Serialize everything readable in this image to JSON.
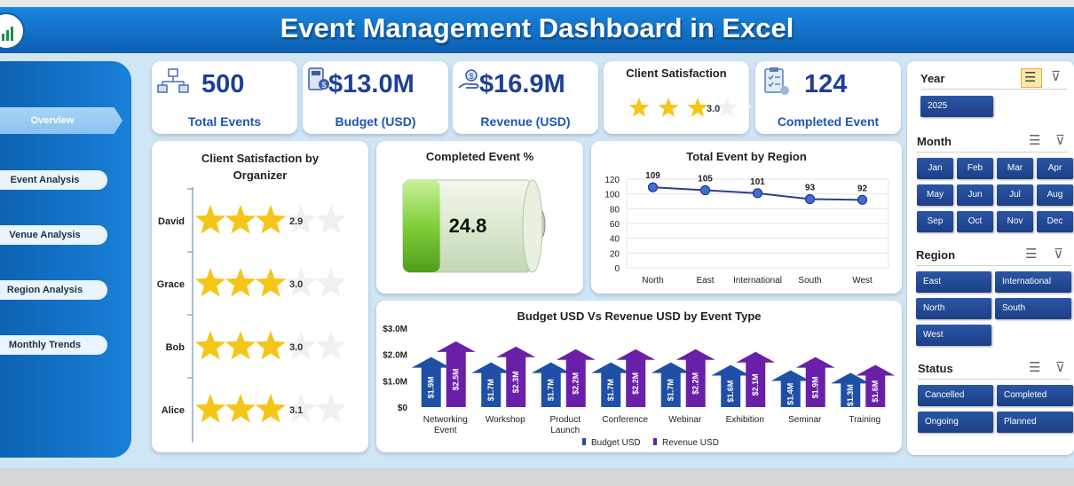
{
  "header": {
    "title": "Event Management Dashboard in Excel"
  },
  "nav": {
    "items": [
      {
        "label": "Overview",
        "active": true
      },
      {
        "label": "Event  Analysis",
        "active": false
      },
      {
        "label": "Venue Analysis",
        "active": false
      },
      {
        "label": "Region Analysis",
        "active": false
      },
      {
        "label": "Monthly Trends",
        "active": false
      }
    ]
  },
  "kpis": {
    "total_events": {
      "value": "500",
      "label": "Total Events",
      "icon": "org-chart-icon"
    },
    "budget": {
      "value": "$13.0M",
      "label": "Budget (USD)",
      "icon": "money-calculator-icon"
    },
    "revenue": {
      "value": "$16.9M",
      "label": "Revenue (USD)",
      "icon": "money-hand-icon"
    },
    "satisfaction": {
      "title": "Client Satisfaction",
      "value": "3.0",
      "rating": 3.0,
      "max": 5
    },
    "completed": {
      "value": "124",
      "label": "Completed Event",
      "icon": "checklist-icon"
    }
  },
  "organizer_chart": {
    "title": "Client Satisfaction by Organizer",
    "rows": [
      {
        "name": "David",
        "rating": 2.9,
        "label": "2.9"
      },
      {
        "name": "Grace",
        "rating": 3.0,
        "label": "3.0"
      },
      {
        "name": "Bob",
        "rating": 3.0,
        "label": "3.0"
      },
      {
        "name": "Alice",
        "rating": 3.1,
        "label": "3.1"
      }
    ]
  },
  "completed_pct": {
    "title": "Completed Event %",
    "value": "24.8",
    "fraction": 0.248
  },
  "chart_data": [
    {
      "type": "line",
      "title": "Total Event by Region",
      "categories": [
        "North",
        "East",
        "International",
        "South",
        "West"
      ],
      "values": [
        109,
        105,
        101,
        93,
        92
      ],
      "ylim": [
        0,
        120
      ],
      "yticks": [
        0,
        20,
        40,
        60,
        80,
        100,
        120
      ],
      "grid": true,
      "color": "#2f3f8f"
    },
    {
      "type": "bar",
      "title": "Budget USD Vs Revenue USD by Event Type",
      "categories": [
        "Networking Event",
        "Workshop",
        "Product Launch",
        "Conference",
        "Webinar",
        "Exhibition",
        "Seminar",
        "Training"
      ],
      "series": [
        {
          "name": "Budget USD",
          "values": [
            1.9,
            1.7,
            1.7,
            1.7,
            1.7,
            1.6,
            1.4,
            1.3
          ],
          "labels": [
            "$1.9M",
            "$1.7M",
            "$1.7M",
            "$1.7M",
            "$1.7M",
            "$1.6M",
            "$1.4M",
            "$1.3M"
          ],
          "color": "#1f4fa6"
        },
        {
          "name": "Revenue USD",
          "values": [
            2.5,
            2.3,
            2.2,
            2.2,
            2.2,
            2.1,
            1.9,
            1.6
          ],
          "labels": [
            "$2.5M",
            "$2.3M",
            "$2.2M",
            "$2.2M",
            "$2.2M",
            "$2.1M",
            "$1.9M",
            "$1.6M"
          ],
          "color": "#6a1fa8"
        }
      ],
      "ylim": [
        0,
        3
      ],
      "yticks": [
        "$0",
        "$1.0M",
        "$2.0M",
        "$3.0M"
      ],
      "legend": "bottom"
    }
  ],
  "slicers": {
    "year": {
      "title": "Year",
      "items": [
        "2025"
      ]
    },
    "month": {
      "title": "Month",
      "items": [
        "Jan",
        "Feb",
        "Mar",
        "Apr",
        "May",
        "Jun",
        "Jul",
        "Aug",
        "Sep",
        "Oct",
        "Nov",
        "Dec"
      ]
    },
    "region": {
      "title": "Region",
      "items": [
        "East",
        "International",
        "North",
        "South",
        "West"
      ]
    },
    "status": {
      "title": "Status",
      "items": [
        "Cancelled",
        "Completed",
        "Ongoing",
        "Planned"
      ]
    }
  }
}
